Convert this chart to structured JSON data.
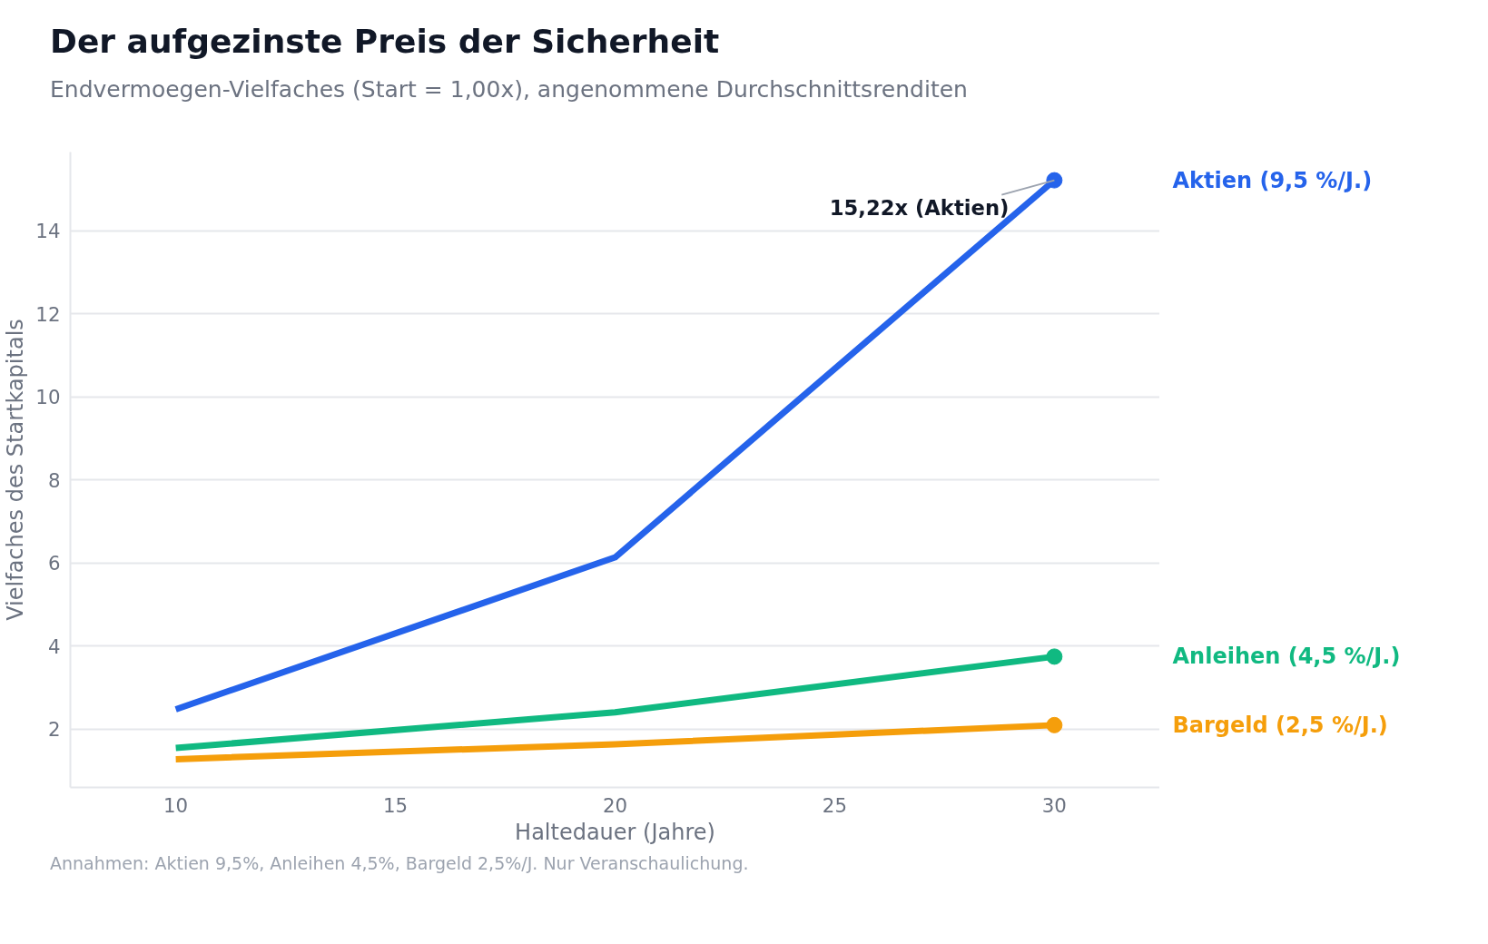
{
  "chart_data": {
    "type": "line",
    "title": "Der aufgezinste Preis der Sicherheit",
    "subtitle": "Endvermoegen-Vielfaches (Start = 1,00x), angenommene Durchschnittsrenditen",
    "xlabel": "Haltedauer (Jahre)",
    "ylabel": "Vielfaches des Startkapitals",
    "x": [
      10,
      20,
      30
    ],
    "series": [
      {
        "name": "Aktien (9,5 %/J.)",
        "color": "#2563eb",
        "values": [
          2.48,
          6.14,
          15.22
        ]
      },
      {
        "name": "Anleihen (4,5 %/J.)",
        "color": "#10b981",
        "values": [
          1.55,
          2.41,
          3.75
        ]
      },
      {
        "name": "Bargeld (2,5 %/J.)",
        "color": "#f59e0b",
        "values": [
          1.28,
          1.64,
          2.1
        ]
      }
    ],
    "xlim": [
      7.6,
      32.4
    ],
    "ylim": [
      0.6,
      15.9
    ],
    "xticks": [
      10,
      15,
      20,
      25,
      30
    ],
    "yticks": [
      2,
      4,
      6,
      8,
      10,
      12,
      14
    ],
    "grid": "y",
    "legend": false,
    "line_style": "solid",
    "annotations": [
      {
        "text": "15,22x (Aktien)",
        "x": 30,
        "y": 15.22
      },
      "Annahmen: Aktien 9,5%, Anleihen 4,5%, Bargeld 2,5%/J. Nur Veranschaulichung."
    ]
  }
}
